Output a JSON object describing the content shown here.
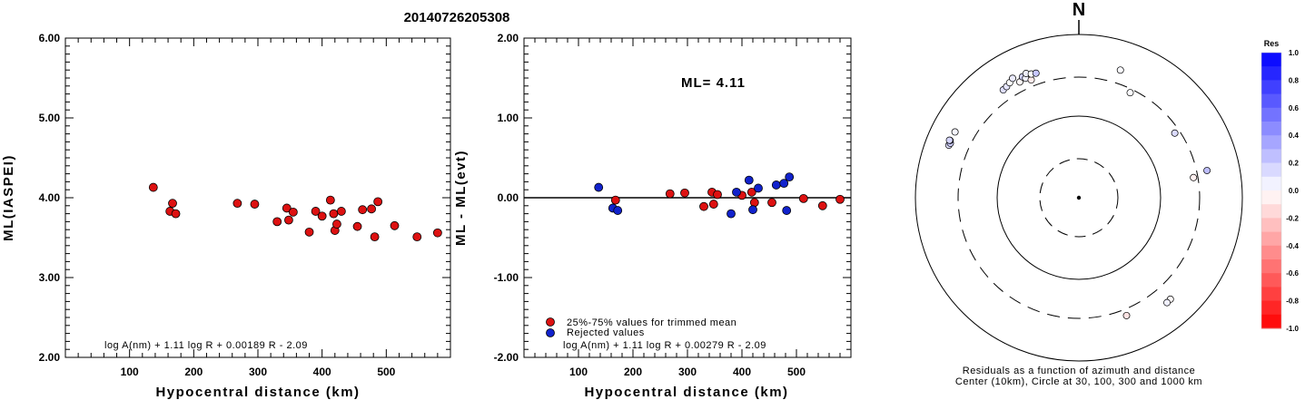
{
  "title": "20140726205308",
  "colors": {
    "red": "#dd1111",
    "blue": "#1122cc",
    "black": "#000000"
  },
  "x_ticks": [
    100,
    200,
    300,
    400,
    500
  ],
  "chart_data": [
    {
      "type": "scatter",
      "xlabel": "Hypocentral distance (km)",
      "ylabel": "ML(IASPEI)",
      "xlim": [
        0,
        600
      ],
      "ylim": [
        2,
        6
      ],
      "y_ticks": [
        "2.00",
        "3.00",
        "4.00",
        "5.00",
        "6.00"
      ],
      "formula": "log A(nm) + 1.11 log R + 0.00189 R - 2.09",
      "series": [
        {
          "color": "red",
          "points": [
            [
              137,
              4.13
            ],
            [
              163,
              3.83
            ],
            [
              167,
              3.93
            ],
            [
              172,
              3.8
            ],
            [
              268,
              3.93
            ],
            [
              295,
              3.92
            ],
            [
              330,
              3.7
            ],
            [
              345,
              3.87
            ],
            [
              348,
              3.72
            ],
            [
              355,
              3.82
            ],
            [
              380,
              3.57
            ],
            [
              390,
              3.83
            ],
            [
              400,
              3.77
            ],
            [
              413,
              3.97
            ],
            [
              418,
              3.8
            ],
            [
              420,
              3.59
            ],
            [
              423,
              3.67
            ],
            [
              430,
              3.83
            ],
            [
              455,
              3.64
            ],
            [
              463,
              3.85
            ],
            [
              477,
              3.86
            ],
            [
              482,
              3.51
            ],
            [
              487,
              3.95
            ],
            [
              513,
              3.65
            ],
            [
              548,
              3.51
            ],
            [
              580,
              3.56
            ]
          ]
        }
      ]
    },
    {
      "type": "scatter",
      "xlabel": "Hypocentral distance (km)",
      "ylabel": "ML - ML(evt)",
      "xlim": [
        0,
        600
      ],
      "ylim": [
        -2,
        2
      ],
      "y_ticks": [
        "-2.00",
        "-1.00",
        "0.00",
        "1.00",
        "2.00"
      ],
      "annotation": "ML= 4.11",
      "formula": "log A(nm) + 1.11 log R + 0.00279 R - 2.09",
      "legend": [
        {
          "color": "red",
          "label": "25%-75% values for trimmed mean"
        },
        {
          "color": "blue",
          "label": "Rejected values"
        }
      ],
      "series": [
        {
          "color": "red",
          "points": [
            [
              168,
              -0.03
            ],
            [
              268,
              0.05
            ],
            [
              295,
              0.06
            ],
            [
              330,
              -0.11
            ],
            [
              345,
              0.07
            ],
            [
              348,
              -0.08
            ],
            [
              355,
              0.04
            ],
            [
              400,
              0.03
            ],
            [
              418,
              0.07
            ],
            [
              423,
              -0.06
            ],
            [
              455,
              -0.06
            ],
            [
              513,
              -0.01
            ],
            [
              548,
              -0.1
            ],
            [
              580,
              -0.02
            ]
          ]
        },
        {
          "color": "blue",
          "points": [
            [
              137,
              0.13
            ],
            [
              163,
              -0.13
            ],
            [
              172,
              -0.16
            ],
            [
              380,
              -0.2
            ],
            [
              390,
              0.07
            ],
            [
              413,
              0.22
            ],
            [
              420,
              -0.15
            ],
            [
              430,
              0.12
            ],
            [
              463,
              0.16
            ],
            [
              477,
              0.18
            ],
            [
              482,
              -0.16
            ],
            [
              487,
              0.26
            ]
          ]
        }
      ]
    },
    {
      "type": "polar",
      "north_label": "N",
      "caption_line1": "Residuals as a function of azimuth and distance",
      "caption_line2": "Center (10km), Circle at 30, 100, 300 and 1000 km",
      "colorbar_title": "Res",
      "colorbar_labels": [
        "1.0",
        "0.8",
        "0.6",
        "0.4",
        "0.2",
        "0.0",
        "-0.2",
        "-0.4",
        "-0.6",
        "-0.8",
        "-1.0"
      ],
      "points": [
        {
          "az": 325,
          "dist_km": 410,
          "res": 0.13
        },
        {
          "az": 327,
          "dist_km": 420,
          "res": 0.1
        },
        {
          "az": 329,
          "dist_km": 440,
          "res": 0.0
        },
        {
          "az": 331,
          "dist_km": 470,
          "res": 0.08
        },
        {
          "az": 333,
          "dist_km": 390,
          "res": -0.03
        },
        {
          "az": 335,
          "dist_km": 430,
          "res": 0.18
        },
        {
          "az": 336,
          "dist_km": 400,
          "res": 0.05
        },
        {
          "az": 337,
          "dist_km": 450,
          "res": 0.06
        },
        {
          "az": 338,
          "dist_km": 360,
          "res": -0.08
        },
        {
          "az": 339,
          "dist_km": 420,
          "res": 0.0
        },
        {
          "az": 341,
          "dist_km": 410,
          "res": 0.22
        },
        {
          "az": 292,
          "dist_km": 520,
          "res": 0.12
        },
        {
          "az": 293,
          "dist_km": 510,
          "res": 0.2
        },
        {
          "az": 294,
          "dist_km": 530,
          "res": 0.07
        },
        {
          "az": 294,
          "dist_km": 540,
          "res": 0.16
        },
        {
          "az": 298,
          "dist_km": 520,
          "res": 0.04
        },
        {
          "az": 18,
          "dist_km": 440,
          "res": 0.02
        },
        {
          "az": 26,
          "dist_km": 270,
          "res": 0.01
        },
        {
          "az": 56,
          "dist_km": 260,
          "res": 0.14
        },
        {
          "az": 78,
          "dist_km": 400,
          "res": 0.26
        },
        {
          "az": 80,
          "dist_km": 265,
          "res": -0.06
        },
        {
          "az": 138,
          "dist_km": 470,
          "res": -0.02
        },
        {
          "az": 140,
          "dist_km": 475,
          "res": 0.06
        },
        {
          "az": 158,
          "dist_km": 360,
          "res": -0.11
        }
      ]
    }
  ]
}
